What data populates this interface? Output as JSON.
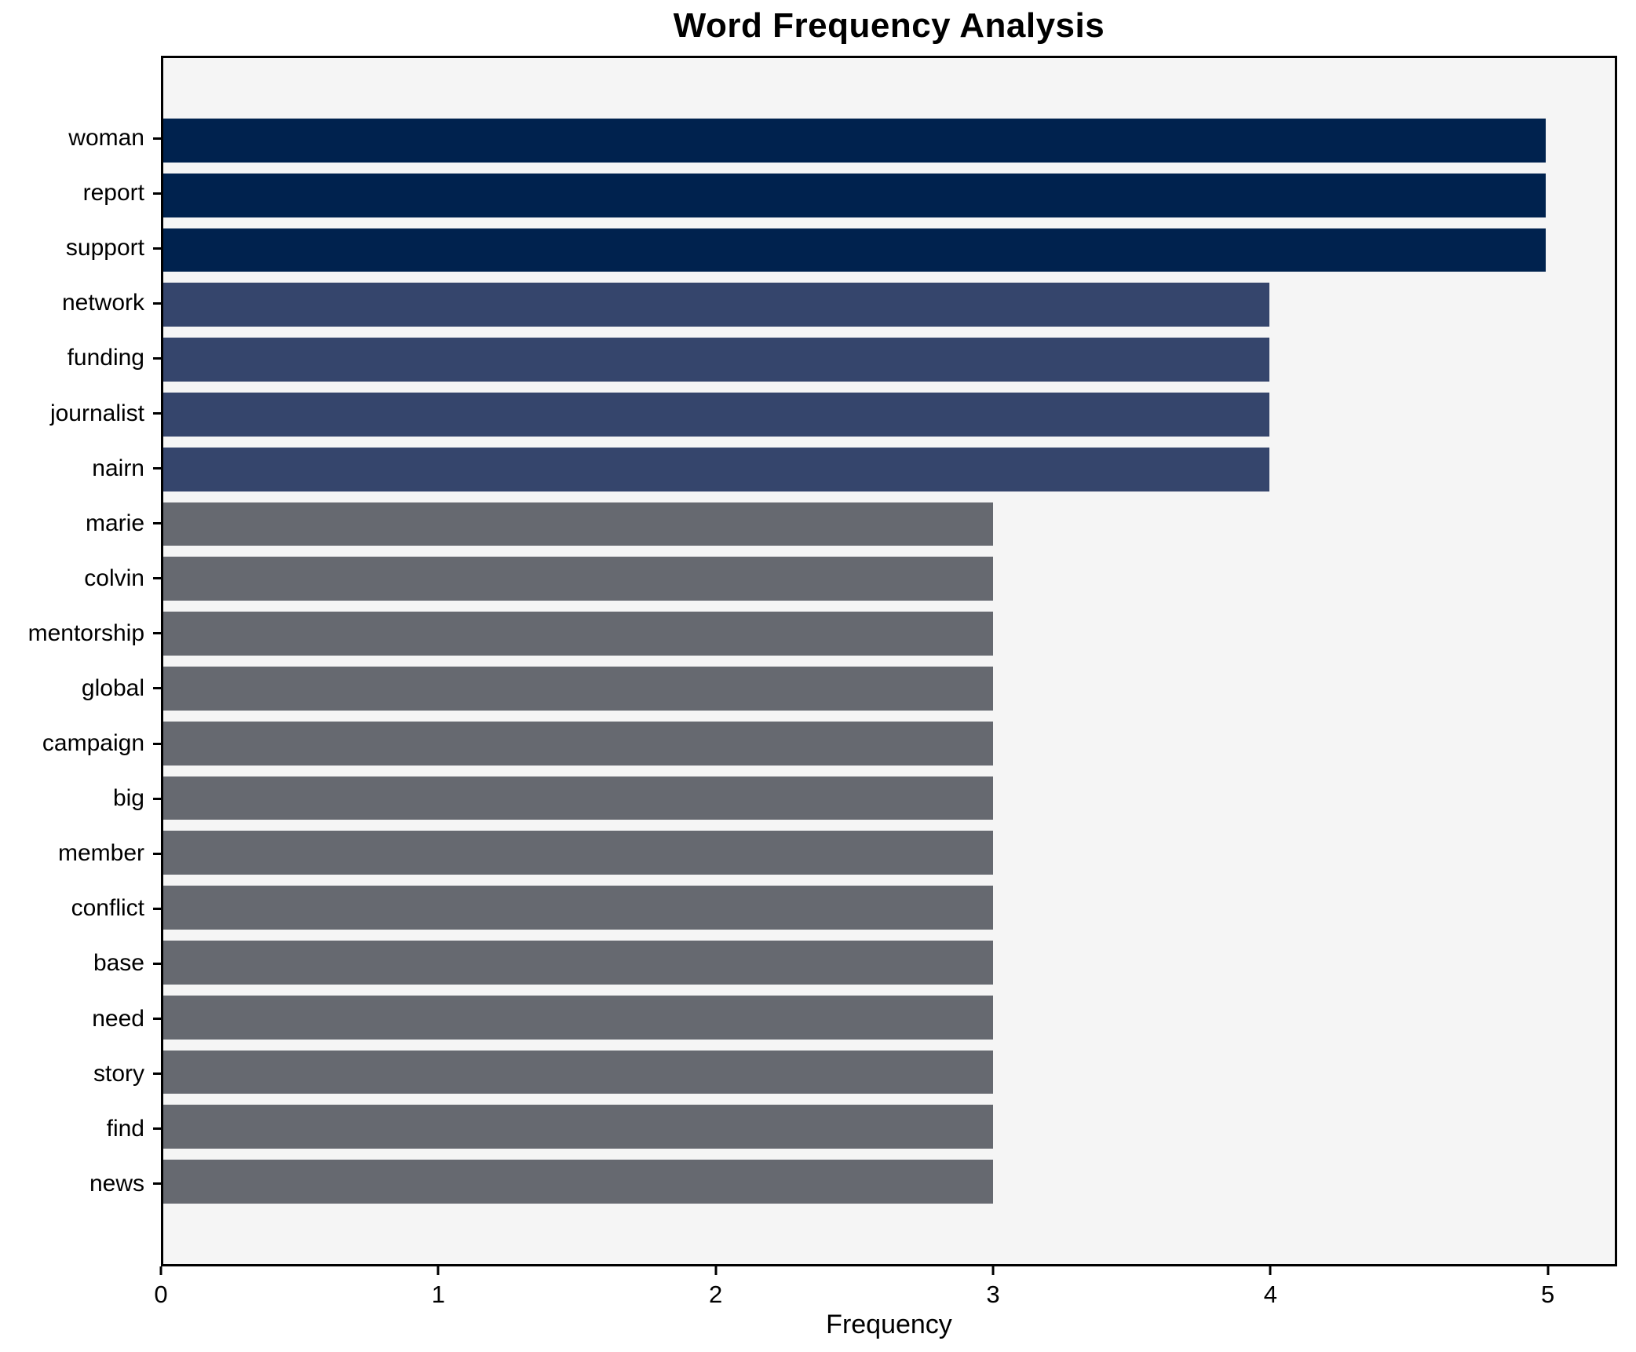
{
  "chart_data": {
    "type": "bar",
    "orientation": "horizontal",
    "title": "Word Frequency Analysis",
    "xlabel": "Frequency",
    "ylabel": "",
    "categories": [
      "woman",
      "report",
      "support",
      "network",
      "funding",
      "journalist",
      "nairn",
      "marie",
      "colvin",
      "mentorship",
      "global",
      "campaign",
      "big",
      "member",
      "conflict",
      "base",
      "need",
      "story",
      "find",
      "news"
    ],
    "values": [
      5,
      5,
      5,
      4,
      4,
      4,
      4,
      3,
      3,
      3,
      3,
      3,
      3,
      3,
      3,
      3,
      3,
      3,
      3,
      3
    ],
    "xticks": [
      0,
      1,
      2,
      3,
      4,
      5
    ],
    "xlim": [
      0,
      5.25
    ],
    "grid": false,
    "legend": "none",
    "bar_height_fraction": 0.8,
    "colors": {
      "value_5": "#00224e",
      "value_4": "#35456c",
      "value_3": "#666970",
      "plot_background": "#f5f5f5",
      "figure_background": "#ffffff",
      "axis": "#000000",
      "text": "#000000"
    }
  }
}
